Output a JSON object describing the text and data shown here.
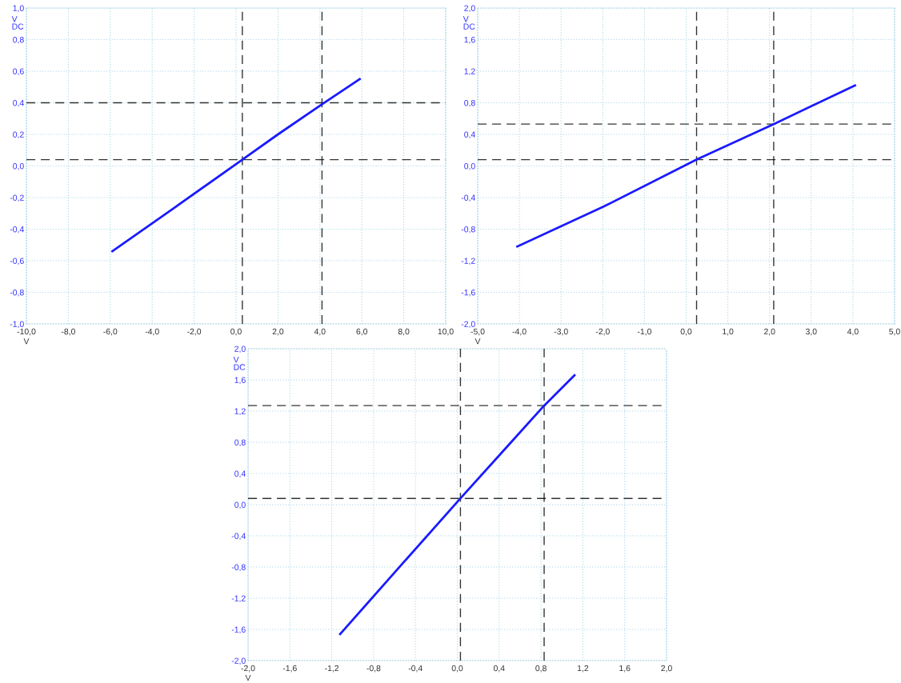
{
  "chart_data": [
    {
      "type": "line",
      "xlabel": "V",
      "ylabel": "V\nDC",
      "grid": true,
      "marker": "none",
      "line_style": "solid",
      "xlim": [
        -10,
        10
      ],
      "ylim": [
        -1,
        1
      ],
      "xticks": [
        {
          "value": -10,
          "label": "-10,0"
        },
        {
          "value": -8,
          "label": "-8,0"
        },
        {
          "value": -6,
          "label": "-6,0"
        },
        {
          "value": -4,
          "label": "-4,0"
        },
        {
          "value": -2,
          "label": "-2,0"
        },
        {
          "value": 0,
          "label": "0,0"
        },
        {
          "value": 2,
          "label": "2,0"
        },
        {
          "value": 4,
          "label": "4,0"
        },
        {
          "value": 6,
          "label": "6,0"
        },
        {
          "value": 8,
          "label": "8,0"
        },
        {
          "value": 10,
          "label": "10,0"
        }
      ],
      "yticks": [
        {
          "value": -1,
          "label": "-1,0"
        },
        {
          "value": -0.8,
          "label": "-0,8"
        },
        {
          "value": -0.6,
          "label": "-0,6"
        },
        {
          "value": -0.4,
          "label": "-0,4"
        },
        {
          "value": -0.2,
          "label": "-0,2"
        },
        {
          "value": 0,
          "label": "0,0"
        },
        {
          "value": 0.2,
          "label": "0,2"
        },
        {
          "value": 0.4,
          "label": "0,4"
        },
        {
          "value": 0.6,
          "label": "0,6"
        },
        {
          "value": 0.8,
          "label": "0,8"
        },
        {
          "value": 1,
          "label": "1,0"
        }
      ],
      "series": [
        {
          "color": "#1a1aff",
          "x": [
            -5.9,
            -3.0,
            0.3,
            2.0,
            4.1,
            5.9
          ],
          "values": [
            -0.54,
            -0.27,
            0.04,
            0.2,
            0.39,
            0.55
          ]
        }
      ],
      "ref_lines": [
        {
          "axis": "x",
          "value": 0.3,
          "color": "#000000",
          "line_style": "dashed"
        },
        {
          "axis": "x",
          "value": 4.1,
          "color": "#000000",
          "line_style": "dashed"
        },
        {
          "axis": "y",
          "value": 0.04,
          "color": "#000000",
          "line_style": "dashed"
        },
        {
          "axis": "y",
          "value": 0.4,
          "color": "#000000",
          "line_style": "dashed"
        }
      ]
    },
    {
      "type": "line",
      "xlabel": "V",
      "ylabel": "V\nDC",
      "grid": true,
      "marker": "none",
      "line_style": "solid",
      "xlim": [
        -5,
        5
      ],
      "ylim": [
        -2,
        2
      ],
      "xticks": [
        {
          "value": -5,
          "label": "-5,0"
        },
        {
          "value": -4,
          "label": "-4,0"
        },
        {
          "value": -3,
          "label": "-3,0"
        },
        {
          "value": -2,
          "label": "-2,0"
        },
        {
          "value": -1,
          "label": "-1,0"
        },
        {
          "value": 0,
          "label": "0,0"
        },
        {
          "value": 1,
          "label": "1,0"
        },
        {
          "value": 2,
          "label": "2,0"
        },
        {
          "value": 3,
          "label": "3,0"
        },
        {
          "value": 4,
          "label": "4,0"
        },
        {
          "value": 5,
          "label": "5,0"
        }
      ],
      "yticks": [
        {
          "value": -2,
          "label": "-2,0"
        },
        {
          "value": -1.6,
          "label": "-1,6"
        },
        {
          "value": -1.2,
          "label": "-1,2"
        },
        {
          "value": -0.8,
          "label": "-0,8"
        },
        {
          "value": -0.4,
          "label": "-0,4"
        },
        {
          "value": 0,
          "label": "0,0"
        },
        {
          "value": 0.4,
          "label": "0,4"
        },
        {
          "value": 0.8,
          "label": "0,8"
        },
        {
          "value": 1.2,
          "label": "1,2"
        },
        {
          "value": 1.6,
          "label": "1,6"
        },
        {
          "value": 2,
          "label": "2,0"
        }
      ],
      "series": [
        {
          "color": "#1a1aff",
          "x": [
            -4.05,
            -2.0,
            0.25,
            2.1,
            4.05
          ],
          "values": [
            -1.02,
            -0.52,
            0.08,
            0.53,
            1.02
          ]
        }
      ],
      "ref_lines": [
        {
          "axis": "x",
          "value": 0.25,
          "color": "#000000",
          "line_style": "dashed"
        },
        {
          "axis": "x",
          "value": 2.1,
          "color": "#000000",
          "line_style": "dashed"
        },
        {
          "axis": "y",
          "value": 0.08,
          "color": "#000000",
          "line_style": "dashed"
        },
        {
          "axis": "y",
          "value": 0.53,
          "color": "#000000",
          "line_style": "dashed"
        }
      ]
    },
    {
      "type": "line",
      "xlabel": "V",
      "ylabel": "V\nDC",
      "grid": true,
      "marker": "none",
      "line_style": "solid",
      "xlim": [
        -2,
        2
      ],
      "ylim": [
        -2,
        2
      ],
      "xticks": [
        {
          "value": -2,
          "label": "-2,0"
        },
        {
          "value": -1.6,
          "label": "-1,6"
        },
        {
          "value": -1.2,
          "label": "-1,2"
        },
        {
          "value": -0.8,
          "label": "-0,8"
        },
        {
          "value": -0.4,
          "label": "-0,4"
        },
        {
          "value": 0,
          "label": "0,0"
        },
        {
          "value": 0.4,
          "label": "0,4"
        },
        {
          "value": 0.8,
          "label": "0,8"
        },
        {
          "value": 1.2,
          "label": "1,2"
        },
        {
          "value": 1.6,
          "label": "1,6"
        },
        {
          "value": 2,
          "label": "2,0"
        }
      ],
      "yticks": [
        {
          "value": -2,
          "label": "-2,0"
        },
        {
          "value": -1.6,
          "label": "-1,6"
        },
        {
          "value": -1.2,
          "label": "-1,2"
        },
        {
          "value": -0.8,
          "label": "-0,8"
        },
        {
          "value": -0.4,
          "label": "-0,4"
        },
        {
          "value": 0,
          "label": "0,0"
        },
        {
          "value": 0.4,
          "label": "0,4"
        },
        {
          "value": 0.8,
          "label": "0,8"
        },
        {
          "value": 1.2,
          "label": "1,2"
        },
        {
          "value": 1.6,
          "label": "1,6"
        },
        {
          "value": 2,
          "label": "2,0"
        }
      ],
      "series": [
        {
          "color": "#1a1aff",
          "x": [
            -1.12,
            -0.5,
            0.03,
            0.5,
            0.83,
            1.12
          ],
          "values": [
            -1.66,
            -0.72,
            0.08,
            0.78,
            1.27,
            1.66
          ]
        }
      ],
      "ref_lines": [
        {
          "axis": "x",
          "value": 0.03,
          "color": "#000000",
          "line_style": "dashed"
        },
        {
          "axis": "x",
          "value": 0.83,
          "color": "#000000",
          "line_style": "dashed"
        },
        {
          "axis": "y",
          "value": 0.08,
          "color": "#000000",
          "line_style": "dashed"
        },
        {
          "axis": "y",
          "value": 1.27,
          "color": "#000000",
          "line_style": "dashed"
        }
      ]
    }
  ]
}
